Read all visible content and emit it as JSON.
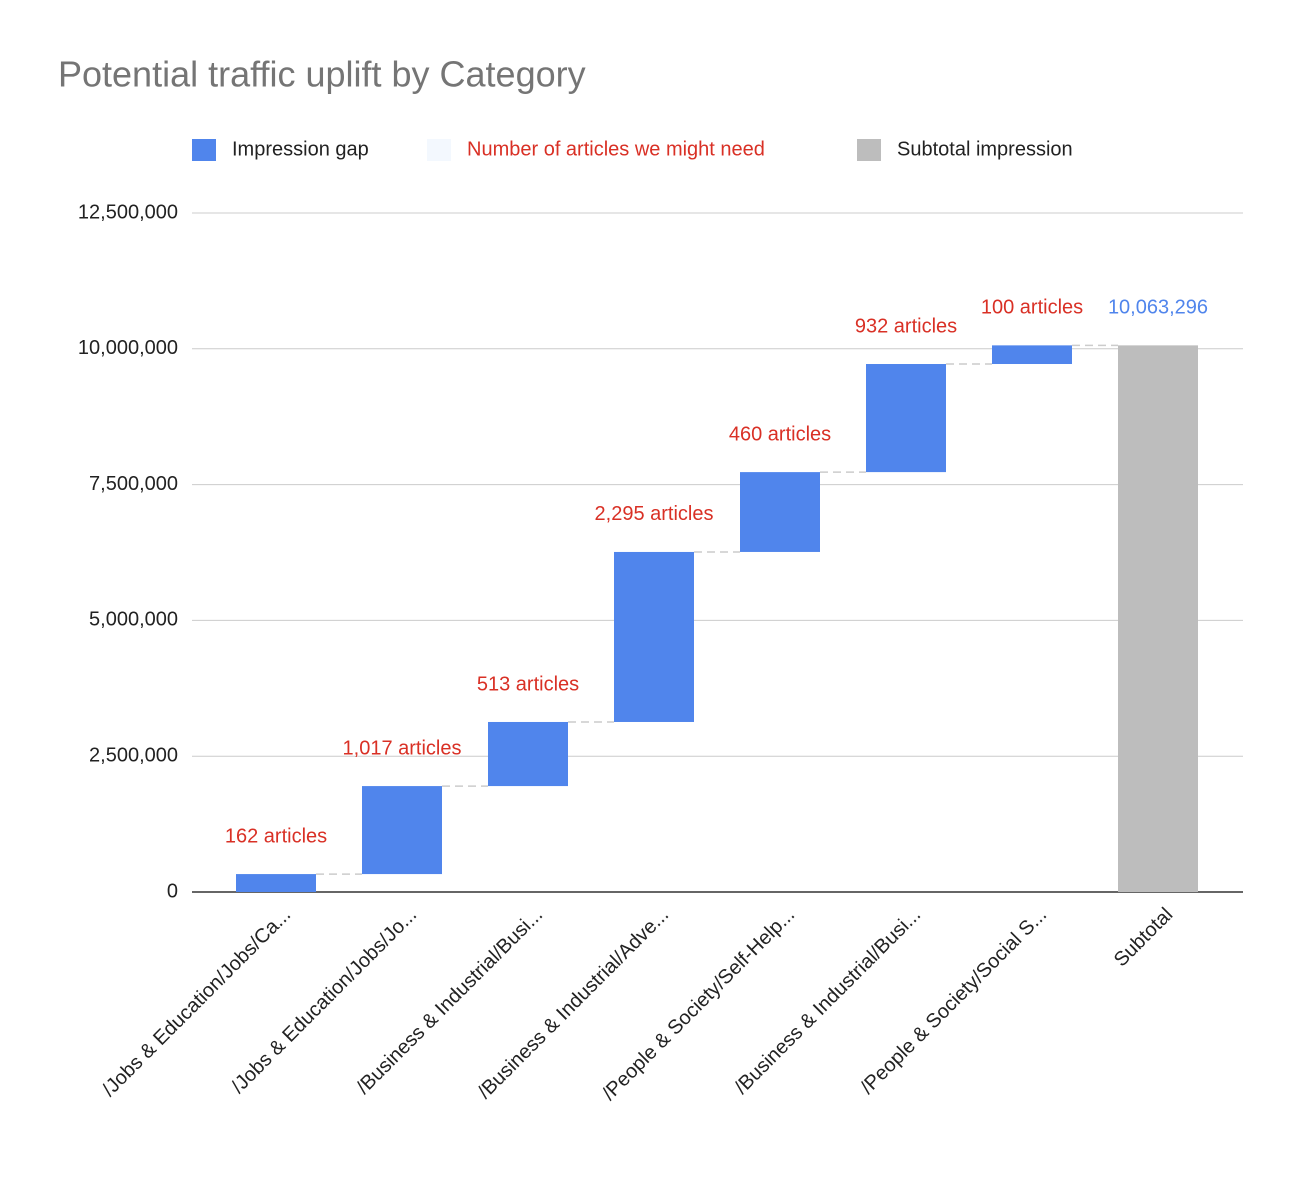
{
  "chart_data": {
    "type": "waterfall",
    "title": "Potential traffic uplift by Category",
    "categories": [
      "/Jobs & Education/Jobs/Ca...",
      "/Jobs & Education/Jobs/Jo...",
      "/Business & Industrial/Busi...",
      "/Business & Industrial/Adve...",
      "/People & Society/Self-Help...",
      "/Business & Industrial/Busi...",
      "/People & Society/Social S...",
      "Subtotal"
    ],
    "series": [
      {
        "name": "Impression gap",
        "color": "#5085ec",
        "values": [
          330000,
          1620000,
          1180000,
          3130000,
          1470000,
          1990000,
          343296,
          null
        ]
      },
      {
        "name": "Number of articles we might need",
        "color": "#f3f8fe",
        "label_color": "#d93025",
        "values": [
          162,
          1017,
          513,
          2295,
          460,
          932,
          100,
          null
        ],
        "value_labels": [
          "162 articles",
          "1,017 articles",
          "513 articles",
          "2,295 articles",
          "460 articles",
          "932 articles",
          "100 articles",
          null
        ]
      },
      {
        "name": "Subtotal impression",
        "color": "#bdbdbd",
        "values": [
          null,
          null,
          null,
          null,
          null,
          null,
          null,
          10063296
        ],
        "value_labels": [
          null,
          null,
          null,
          null,
          null,
          null,
          null,
          "10,063,296"
        ]
      }
    ],
    "ylim": [
      0,
      12500000
    ],
    "yticks": [
      0,
      {
        "value": 2500000,
        "label": "2,500,000"
      },
      {
        "value": 5000000,
        "label": "5,000,000"
      },
      {
        "value": 7500000,
        "label": "7,500,000"
      },
      {
        "value": 10000000,
        "label": "10,000,000"
      },
      {
        "value": 12500000,
        "label": "12,500,000"
      }
    ],
    "grid": true,
    "legend": "top"
  }
}
